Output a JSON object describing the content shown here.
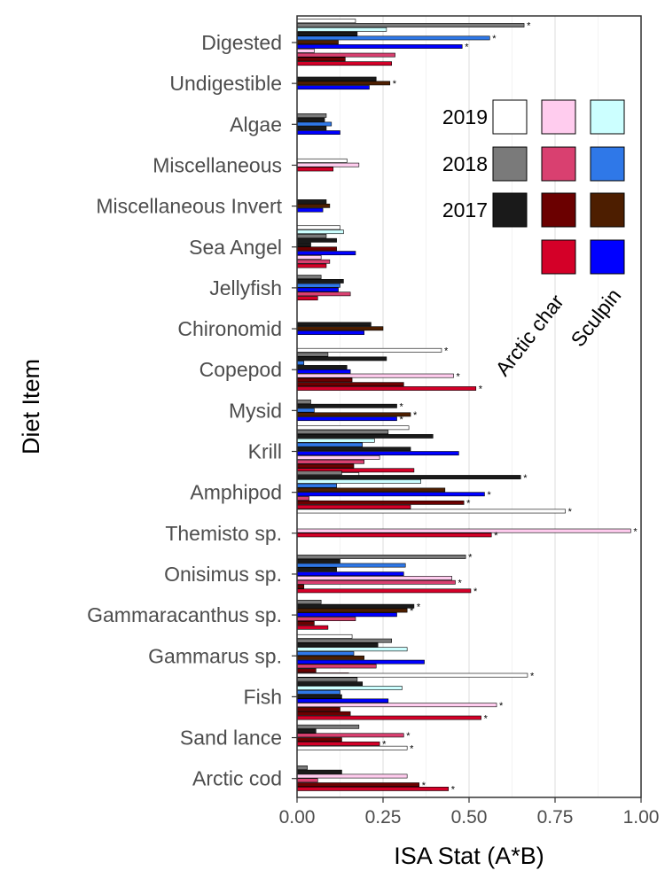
{
  "chart_data": {
    "type": "bar",
    "orientation": "horizontal",
    "xlabel": "ISA Stat (A*B)",
    "ylabel": "Diet Item",
    "xlim": [
      0,
      1
    ],
    "xticks": [
      "0.00",
      "0.25",
      "0.50",
      "0.75",
      "1.00"
    ],
    "grid": "vertical major and minor gridlines",
    "legend_placement": "top-right inside plot",
    "legend": {
      "years": [
        "2019",
        "2018",
        "2017"
      ],
      "species": [
        "Arctic char",
        "Sculpin"
      ],
      "cells": [
        {
          "year": "2019",
          "species": "Arctic char",
          "color": "#ffccee",
          "label_year": true
        },
        {
          "year": "2019",
          "species": "Sculpin",
          "color": "#ccffff"
        },
        {
          "year": "2018",
          "species": "Arctic char",
          "color": "#d94070"
        },
        {
          "year": "2018",
          "species": "Sculpin",
          "color": "#2f78e8"
        },
        {
          "year": "2017",
          "species": "Arctic char",
          "color": "#6b0000"
        },
        {
          "year": "2017",
          "species": "Sculpin",
          "color": "#4d1e00"
        },
        {
          "year": "",
          "species": "Arctic char",
          "color": "#d40028"
        },
        {
          "year": "",
          "species": "Sculpin",
          "color": "#0000ff"
        }
      ],
      "year_colors": {
        "2019": "#ffffff",
        "2018": "#7a7a7a",
        "2017": "#1a1a1a"
      }
    },
    "categories": [
      "Digested",
      "Undigestible",
      "Algae",
      "Miscellaneous",
      "Miscellaneous Invert",
      "Sea Angel",
      "Jellyfish",
      "Chironomid",
      "Copepod",
      "Mysid",
      "Krill",
      "Amphipod",
      "Themisto sp.",
      "Onisimus sp.",
      "Gammaracanthus sp.",
      "Gammarus sp.",
      "Fish",
      "Sand lance",
      "Arctic cod"
    ],
    "bars": [
      {
        "cat": "Digested",
        "slot": 0,
        "value": 0.17,
        "color": "#ffffff"
      },
      {
        "cat": "Digested",
        "slot": 1,
        "value": 0.66,
        "color": "#7a7a7a",
        "sig": true
      },
      {
        "cat": "Digested",
        "slot": 2,
        "value": 0.26,
        "color": "#ccffff"
      },
      {
        "cat": "Digested",
        "slot": 3,
        "value": 0.175,
        "color": "#1a1a1a"
      },
      {
        "cat": "Digested",
        "slot": 4,
        "value": 0.56,
        "color": "#2f78e8",
        "sig": true
      },
      {
        "cat": "Digested",
        "slot": 5,
        "value": 0.12,
        "color": "#4d1e00"
      },
      {
        "cat": "Digested",
        "slot": 6,
        "value": 0.48,
        "color": "#0000ff",
        "sig": true
      },
      {
        "cat": "Digested",
        "slot": 7,
        "value": 0.05,
        "color": "#ffccee"
      },
      {
        "cat": "Digested",
        "slot": 8,
        "value": 0.285,
        "color": "#d94070"
      },
      {
        "cat": "Digested",
        "slot": 9,
        "value": 0.14,
        "color": "#6b0000"
      },
      {
        "cat": "Digested",
        "slot": 10,
        "value": 0.275,
        "color": "#d40028"
      },
      {
        "cat": "Undigestible",
        "slot": 0,
        "value": 0.23,
        "color": "#1a1a1a"
      },
      {
        "cat": "Undigestible",
        "slot": 1,
        "value": 0.27,
        "color": "#4d1e00",
        "sig": true
      },
      {
        "cat": "Undigestible",
        "slot": 2,
        "value": 0.21,
        "color": "#0000ff"
      },
      {
        "cat": "Algae",
        "slot": 0,
        "value": 0.085,
        "color": "#7a7a7a"
      },
      {
        "cat": "Algae",
        "slot": 1,
        "value": 0.08,
        "color": "#1a1a1a"
      },
      {
        "cat": "Algae",
        "slot": 2,
        "value": 0.1,
        "color": "#2f78e8"
      },
      {
        "cat": "Algae",
        "slot": 3,
        "value": 0.085,
        "color": "#1a1a1a"
      },
      {
        "cat": "Algae",
        "slot": 4,
        "value": 0.125,
        "color": "#0000ff"
      },
      {
        "cat": "Miscellaneous",
        "slot": 0,
        "value": 0.145,
        "color": "#ffffff"
      },
      {
        "cat": "Miscellaneous",
        "slot": 1,
        "value": 0.18,
        "color": "#ffccee"
      },
      {
        "cat": "Miscellaneous",
        "slot": 2,
        "value": 0.105,
        "color": "#d40028"
      },
      {
        "cat": "Miscellaneous Invert",
        "slot": 0,
        "value": 0.085,
        "color": "#1a1a1a"
      },
      {
        "cat": "Miscellaneous Invert",
        "slot": 1,
        "value": 0.095,
        "color": "#4d1e00"
      },
      {
        "cat": "Miscellaneous Invert",
        "slot": 2,
        "value": 0.075,
        "color": "#0000ff"
      },
      {
        "cat": "Sea Angel",
        "slot": 0,
        "value": 0.125,
        "color": "#ffffff"
      },
      {
        "cat": "Sea Angel",
        "slot": 1,
        "value": 0.135,
        "color": "#ccffff"
      },
      {
        "cat": "Sea Angel",
        "slot": 2,
        "value": 0.085,
        "color": "#7a7a7a"
      },
      {
        "cat": "Sea Angel",
        "slot": 3,
        "value": 0.115,
        "color": "#1a1a1a"
      },
      {
        "cat": "Sea Angel",
        "slot": 4,
        "value": 0.04,
        "color": "#1a1a1a"
      },
      {
        "cat": "Sea Angel",
        "slot": 5,
        "value": 0.115,
        "color": "#6b0000"
      },
      {
        "cat": "Sea Angel",
        "slot": 6,
        "value": 0.17,
        "color": "#0000ff"
      },
      {
        "cat": "Sea Angel",
        "slot": 7,
        "value": 0.07,
        "color": "#ffccee"
      },
      {
        "cat": "Sea Angel",
        "slot": 8,
        "value": 0.095,
        "color": "#d94070"
      },
      {
        "cat": "Sea Angel",
        "slot": 9,
        "value": 0.085,
        "color": "#d40028"
      },
      {
        "cat": "Jellyfish",
        "slot": 0,
        "value": 0.07,
        "color": "#7a7a7a"
      },
      {
        "cat": "Jellyfish",
        "slot": 1,
        "value": 0.135,
        "color": "#1a1a1a"
      },
      {
        "cat": "Jellyfish",
        "slot": 2,
        "value": 0.125,
        "color": "#2f78e8"
      },
      {
        "cat": "Jellyfish",
        "slot": 3,
        "value": 0.12,
        "color": "#0000ff"
      },
      {
        "cat": "Jellyfish",
        "slot": 4,
        "value": 0.155,
        "color": "#d94070"
      },
      {
        "cat": "Jellyfish",
        "slot": 5,
        "value": 0.06,
        "color": "#d40028"
      },
      {
        "cat": "Chironomid",
        "slot": 0,
        "value": 0.215,
        "color": "#1a1a1a"
      },
      {
        "cat": "Chironomid",
        "slot": 1,
        "value": 0.25,
        "color": "#4d1e00"
      },
      {
        "cat": "Chironomid",
        "slot": 2,
        "value": 0.195,
        "color": "#0000ff"
      },
      {
        "cat": "Copepod",
        "slot": 0,
        "value": 0.42,
        "color": "#ffffff",
        "sig": true
      },
      {
        "cat": "Copepod",
        "slot": 1,
        "value": 0.09,
        "color": "#7a7a7a"
      },
      {
        "cat": "Copepod",
        "slot": 2,
        "value": 0.26,
        "color": "#1a1a1a"
      },
      {
        "cat": "Copepod",
        "slot": 3,
        "value": 0.02,
        "color": "#2f78e8"
      },
      {
        "cat": "Copepod",
        "slot": 4,
        "value": 0.145,
        "color": "#1a1a1a"
      },
      {
        "cat": "Copepod",
        "slot": 5,
        "value": 0.155,
        "color": "#0000ff"
      },
      {
        "cat": "Copepod",
        "slot": 6,
        "value": 0.455,
        "color": "#ffccee",
        "sig": true
      },
      {
        "cat": "Copepod",
        "slot": 7,
        "value": 0.16,
        "color": "#6b0000"
      },
      {
        "cat": "Copepod",
        "slot": 8,
        "value": 0.31,
        "color": "#6b0000"
      },
      {
        "cat": "Copepod",
        "slot": 9,
        "value": 0.52,
        "color": "#d40028",
        "sig": true
      },
      {
        "cat": "Mysid",
        "slot": 0,
        "value": 0.04,
        "color": "#7a7a7a"
      },
      {
        "cat": "Mysid",
        "slot": 1,
        "value": 0.29,
        "color": "#1a1a1a",
        "sig": true
      },
      {
        "cat": "Mysid",
        "slot": 2,
        "value": 0.05,
        "color": "#2f78e8"
      },
      {
        "cat": "Mysid",
        "slot": 3,
        "value": 0.33,
        "color": "#4d1e00",
        "sig": true
      },
      {
        "cat": "Mysid",
        "slot": 4,
        "value": 0.29,
        "color": "#0000ff",
        "sig": true
      },
      {
        "cat": "Krill",
        "slot": 0,
        "value": 0.325,
        "color": "#ffffff"
      },
      {
        "cat": "Krill",
        "slot": 1,
        "value": 0.265,
        "color": "#7a7a7a"
      },
      {
        "cat": "Krill",
        "slot": 2,
        "value": 0.395,
        "color": "#1a1a1a"
      },
      {
        "cat": "Krill",
        "slot": 3,
        "value": 0.225,
        "color": "#ccffff"
      },
      {
        "cat": "Krill",
        "slot": 4,
        "value": 0.19,
        "color": "#2f78e8"
      },
      {
        "cat": "Krill",
        "slot": 5,
        "value": 0.33,
        "color": "#1a1a1a"
      },
      {
        "cat": "Krill",
        "slot": 6,
        "value": 0.47,
        "color": "#0000ff"
      },
      {
        "cat": "Krill",
        "slot": 7,
        "value": 0.24,
        "color": "#ffccee"
      },
      {
        "cat": "Krill",
        "slot": 8,
        "value": 0.195,
        "color": "#d94070"
      },
      {
        "cat": "Krill",
        "slot": 9,
        "value": 0.165,
        "color": "#6b0000"
      },
      {
        "cat": "Krill",
        "slot": 10,
        "value": 0.34,
        "color": "#d40028"
      },
      {
        "cat": "Krill",
        "slot": 11,
        "value": 0.18,
        "color": "#ffffff"
      },
      {
        "cat": "Amphipod",
        "slot": 0,
        "value": 0.13,
        "color": "#7a7a7a"
      },
      {
        "cat": "Amphipod",
        "slot": 1,
        "value": 0.65,
        "color": "#1a1a1a",
        "sig": true
      },
      {
        "cat": "Amphipod",
        "slot": 2,
        "value": 0.36,
        "color": "#ccffff"
      },
      {
        "cat": "Amphipod",
        "slot": 3,
        "value": 0.115,
        "color": "#2f78e8"
      },
      {
        "cat": "Amphipod",
        "slot": 4,
        "value": 0.43,
        "color": "#4d1e00"
      },
      {
        "cat": "Amphipod",
        "slot": 5,
        "value": 0.545,
        "color": "#0000ff",
        "sig": true
      },
      {
        "cat": "Amphipod",
        "slot": 6,
        "value": 0.035,
        "color": "#d94070"
      },
      {
        "cat": "Amphipod",
        "slot": 7,
        "value": 0.485,
        "color": "#6b0000",
        "sig": true
      },
      {
        "cat": "Amphipod",
        "slot": 8,
        "value": 0.33,
        "color": "#d40028"
      },
      {
        "cat": "Amphipod",
        "slot": 9,
        "value": 0.78,
        "color": "#ffffff",
        "sig": true
      },
      {
        "cat": "Themisto sp.",
        "slot": 0,
        "value": 0.97,
        "color": "#ffccee",
        "sig": true
      },
      {
        "cat": "Themisto sp.",
        "slot": 1,
        "value": 0.565,
        "color": "#d40028",
        "sig": true
      },
      {
        "cat": "Onisimus sp.",
        "slot": 0,
        "value": 0.49,
        "color": "#7a7a7a",
        "sig": true
      },
      {
        "cat": "Onisimus sp.",
        "slot": 1,
        "value": 0.125,
        "color": "#1a1a1a"
      },
      {
        "cat": "Onisimus sp.",
        "slot": 2,
        "value": 0.315,
        "color": "#2f78e8"
      },
      {
        "cat": "Onisimus sp.",
        "slot": 3,
        "value": 0.115,
        "color": "#1a1a1a"
      },
      {
        "cat": "Onisimus sp.",
        "slot": 4,
        "value": 0.31,
        "color": "#0000ff"
      },
      {
        "cat": "Onisimus sp.",
        "slot": 5,
        "value": 0.45,
        "color": "#ffccee"
      },
      {
        "cat": "Onisimus sp.",
        "slot": 6,
        "value": 0.46,
        "color": "#d94070",
        "sig": true
      },
      {
        "cat": "Onisimus sp.",
        "slot": 7,
        "value": 0.02,
        "color": "#6b0000"
      },
      {
        "cat": "Onisimus sp.",
        "slot": 8,
        "value": 0.505,
        "color": "#d40028",
        "sig": true
      },
      {
        "cat": "Gammaracanthus sp.",
        "slot": 0,
        "value": 0.07,
        "color": "#7a7a7a"
      },
      {
        "cat": "Gammaracanthus sp.",
        "slot": 1,
        "value": 0.34,
        "color": "#1a1a1a",
        "sig": true
      },
      {
        "cat": "Gammaracanthus sp.",
        "slot": 2,
        "value": 0.32,
        "color": "#4d1e00",
        "sig": true
      },
      {
        "cat": "Gammaracanthus sp.",
        "slot": 3,
        "value": 0.29,
        "color": "#0000ff"
      },
      {
        "cat": "Gammaracanthus sp.",
        "slot": 4,
        "value": 0.17,
        "color": "#d94070"
      },
      {
        "cat": "Gammaracanthus sp.",
        "slot": 5,
        "value": 0.05,
        "color": "#6b0000"
      },
      {
        "cat": "Gammaracanthus sp.",
        "slot": 6,
        "value": 0.09,
        "color": "#d40028"
      },
      {
        "cat": "Gammarus sp.",
        "slot": 0,
        "value": 0.16,
        "color": "#ffffff"
      },
      {
        "cat": "Gammarus sp.",
        "slot": 1,
        "value": 0.275,
        "color": "#7a7a7a"
      },
      {
        "cat": "Gammarus sp.",
        "slot": 2,
        "value": 0.235,
        "color": "#1a1a1a"
      },
      {
        "cat": "Gammarus sp.",
        "slot": 3,
        "value": 0.32,
        "color": "#ccffff"
      },
      {
        "cat": "Gammarus sp.",
        "slot": 4,
        "value": 0.165,
        "color": "#2f78e8"
      },
      {
        "cat": "Gammarus sp.",
        "slot": 5,
        "value": 0.195,
        "color": "#4d1e00"
      },
      {
        "cat": "Gammarus sp.",
        "slot": 6,
        "value": 0.37,
        "color": "#0000ff"
      },
      {
        "cat": "Gammarus sp.",
        "slot": 7,
        "value": 0.23,
        "color": "#d94070"
      },
      {
        "cat": "Gammarus sp.",
        "slot": 8,
        "value": 0.055,
        "color": "#6b0000"
      },
      {
        "cat": "Gammarus sp.",
        "slot": 9,
        "value": 0.15,
        "color": "#d40028"
      },
      {
        "cat": "Fish",
        "slot": 0,
        "value": 0.67,
        "color": "#ffffff",
        "sig": true
      },
      {
        "cat": "Fish",
        "slot": 1,
        "value": 0.175,
        "color": "#7a7a7a"
      },
      {
        "cat": "Fish",
        "slot": 2,
        "value": 0.19,
        "color": "#1a1a1a"
      },
      {
        "cat": "Fish",
        "slot": 3,
        "value": 0.305,
        "color": "#ccffff"
      },
      {
        "cat": "Fish",
        "slot": 4,
        "value": 0.125,
        "color": "#2f78e8"
      },
      {
        "cat": "Fish",
        "slot": 5,
        "value": 0.13,
        "color": "#1a1a1a"
      },
      {
        "cat": "Fish",
        "slot": 6,
        "value": 0.265,
        "color": "#0000ff"
      },
      {
        "cat": "Fish",
        "slot": 7,
        "value": 0.58,
        "color": "#ffccee",
        "sig": true
      },
      {
        "cat": "Fish",
        "slot": 8,
        "value": 0.125,
        "color": "#6b0000"
      },
      {
        "cat": "Fish",
        "slot": 9,
        "value": 0.155,
        "color": "#6b0000"
      },
      {
        "cat": "Fish",
        "slot": 10,
        "value": 0.535,
        "color": "#d40028",
        "sig": true
      },
      {
        "cat": "Sand lance",
        "slot": 0,
        "value": 0.18,
        "color": "#7a7a7a"
      },
      {
        "cat": "Sand lance",
        "slot": 1,
        "value": 0.055,
        "color": "#1a1a1a"
      },
      {
        "cat": "Sand lance",
        "slot": 2,
        "value": 0.31,
        "color": "#d94070",
        "sig": true
      },
      {
        "cat": "Sand lance",
        "slot": 3,
        "value": 0.13,
        "color": "#6b0000"
      },
      {
        "cat": "Sand lance",
        "slot": 4,
        "value": 0.24,
        "color": "#d40028",
        "sig": true
      },
      {
        "cat": "Sand lance",
        "slot": 5,
        "value": 0.32,
        "color": "#ffffff",
        "sig": true
      },
      {
        "cat": "Arctic cod",
        "slot": 0,
        "value": 0.03,
        "color": "#7a7a7a"
      },
      {
        "cat": "Arctic cod",
        "slot": 1,
        "value": 0.13,
        "color": "#1a1a1a"
      },
      {
        "cat": "Arctic cod",
        "slot": 2,
        "value": 0.32,
        "color": "#ffccee"
      },
      {
        "cat": "Arctic cod",
        "slot": 3,
        "value": 0.06,
        "color": "#d94070"
      },
      {
        "cat": "Arctic cod",
        "slot": 4,
        "value": 0.355,
        "color": "#6b0000",
        "sig": true
      },
      {
        "cat": "Arctic cod",
        "slot": 5,
        "value": 0.44,
        "color": "#d40028",
        "sig": true
      }
    ]
  }
}
